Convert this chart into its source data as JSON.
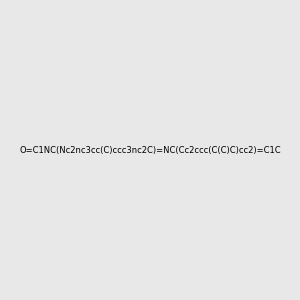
{
  "smiles": "O=C1NC(Nc2nc3cc(C)ccc3nc2C)=NC(Cc2ccc(C(C)C)cc2)=C1C",
  "background_color": "#e8e8e8",
  "title": "",
  "figsize": [
    3.0,
    3.0
  ],
  "dpi": 100
}
